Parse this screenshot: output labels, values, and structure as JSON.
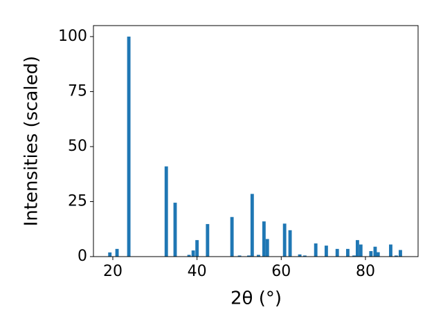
{
  "chart_data": {
    "type": "bar",
    "x": [
      19.3,
      21.0,
      23.8,
      32.7,
      34.8,
      38.1,
      39.1,
      40.0,
      42.5,
      48.3,
      50.1,
      52.3,
      53.1,
      54.6,
      55.9,
      56.7,
      60.8,
      62.1,
      64.4,
      65.6,
      68.2,
      70.7,
      73.3,
      75.8,
      77.3,
      78.1,
      78.9,
      81.3,
      82.3,
      83.0,
      86.0,
      87.3,
      88.3
    ],
    "values": [
      1.9,
      3.5,
      100,
      41,
      24.5,
      0.8,
      2.8,
      7.5,
      14.8,
      18,
      0.5,
      0.5,
      28.5,
      0.8,
      16,
      8,
      15,
      12,
      1,
      0.5,
      6,
      5,
      3.5,
      3.5,
      0.5,
      7.5,
      5.5,
      2.5,
      4.5,
      2,
      5.5,
      0.5,
      3
    ],
    "color": "#1f77b4",
    "xlabel": "2θ (°)",
    "ylabel": "Intensities (scaled)",
    "xlim": [
      15.4,
      92.5
    ],
    "ylim": [
      0,
      105
    ],
    "xticks": [
      20,
      40,
      60,
      80
    ],
    "yticks": [
      0,
      25,
      50,
      75,
      100
    ]
  }
}
